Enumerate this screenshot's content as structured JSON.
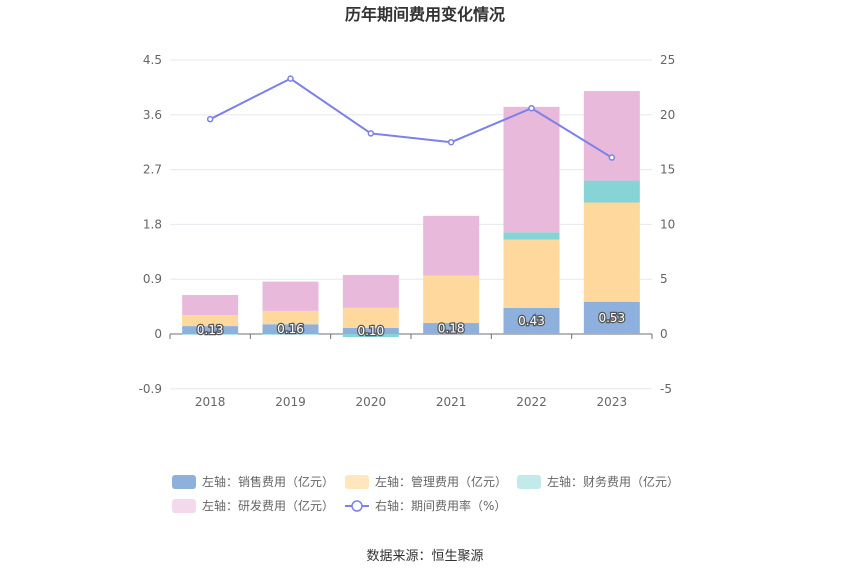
{
  "chart_data": {
    "type": "bar",
    "title": "历年期间费用变化情况",
    "categories": [
      "2018",
      "2019",
      "2020",
      "2021",
      "2022",
      "2023"
    ],
    "left_axis": {
      "min": -0.9,
      "max": 4.5,
      "ticks": [
        "-0.9",
        "0",
        "0.9",
        "1.8",
        "2.7",
        "3.6",
        "4.5"
      ]
    },
    "right_axis": {
      "min": -5,
      "max": 25,
      "ticks": [
        "-5",
        "0",
        "5",
        "10",
        "15",
        "20",
        "25"
      ]
    },
    "series": [
      {
        "name": "左轴：销售费用（亿元）",
        "kind": "bar",
        "color": "#8eb0dd",
        "values": [
          0.13,
          0.16,
          0.1,
          0.18,
          0.43,
          0.53
        ],
        "labels": [
          "0.13",
          "0.16",
          "0.10",
          "0.18",
          "0.43",
          "0.53"
        ]
      },
      {
        "name": "左轴：管理费用（亿元）",
        "kind": "bar",
        "color": "#fed89c",
        "values": [
          0.18,
          0.22,
          0.33,
          0.78,
          1.12,
          1.63
        ]
      },
      {
        "name": "左轴：财务费用（亿元）",
        "kind": "bar",
        "color": "#86d4d6",
        "values": [
          -0.01,
          -0.01,
          -0.05,
          0.0,
          0.12,
          0.36
        ]
      },
      {
        "name": "左轴：研发费用（亿元）",
        "kind": "bar",
        "color": "#e8b9da",
        "values": [
          0.33,
          0.48,
          0.54,
          0.98,
          2.06,
          1.47
        ]
      },
      {
        "name": "右轴：期间费用率（%）",
        "kind": "line",
        "color": "#7c80e8",
        "values": [
          19.6,
          23.3,
          18.3,
          17.5,
          20.6,
          16.1
        ]
      }
    ],
    "legend_position": "bottom",
    "grid": true
  },
  "source": "数据来源：恒生聚源"
}
